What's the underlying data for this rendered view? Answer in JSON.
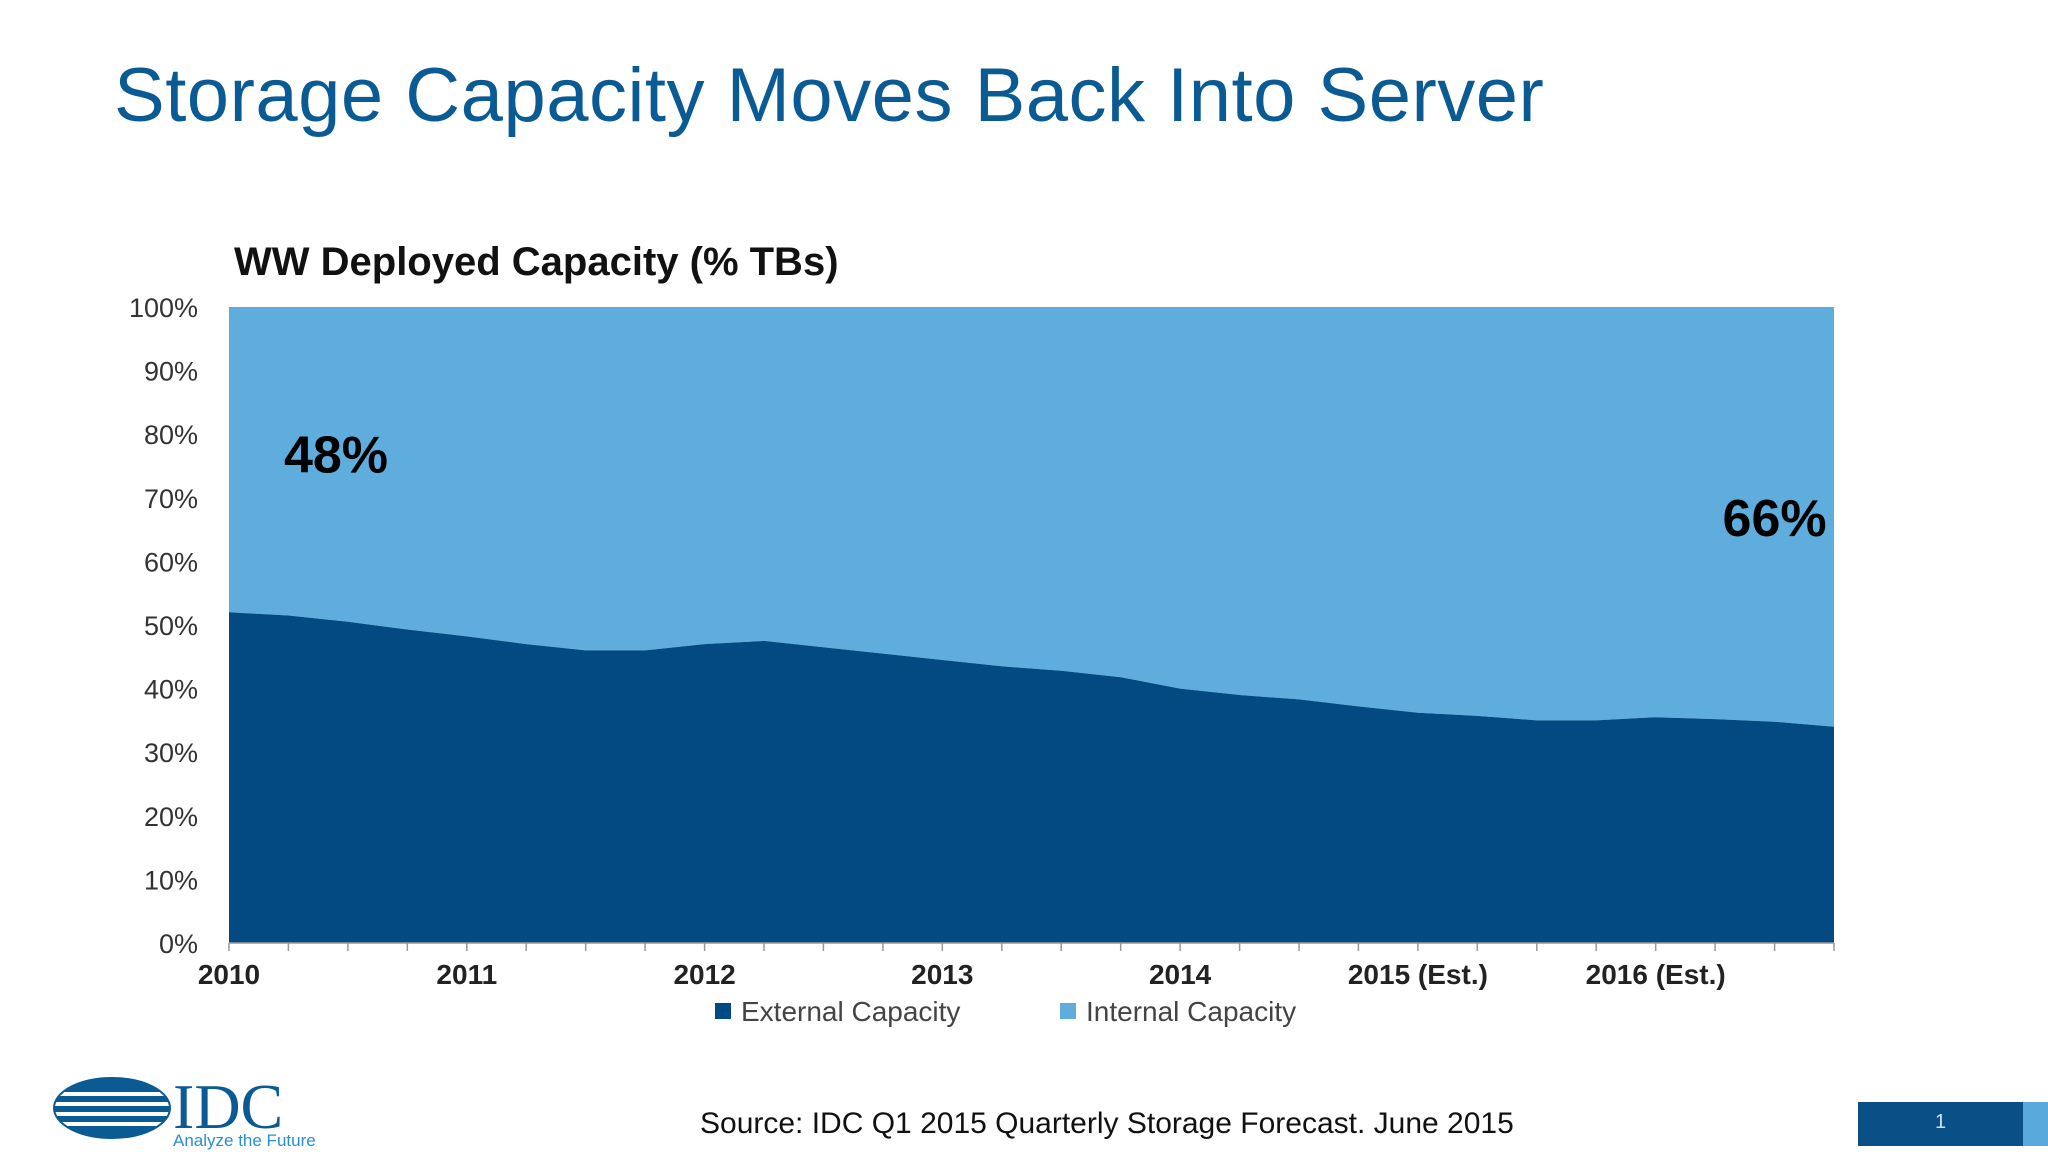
{
  "slide": {
    "title": "Storage Capacity Moves Back Into Server",
    "source": "Source: IDC Q1 2015 Quarterly  Storage Forecast. June 2015",
    "page_number": "1"
  },
  "logo": {
    "name": "IDC",
    "tagline": "Analyze the Future"
  },
  "colors": {
    "title": "#0a5a94",
    "external": "#034a82",
    "internal": "#5eaddc"
  },
  "chart_data": {
    "type": "area",
    "stacked": true,
    "percent": true,
    "title": "WW Deployed Capacity (% TBs)",
    "xlabel": "",
    "ylabel": "",
    "ylim": [
      0,
      100
    ],
    "y_ticks": [
      "0%",
      "10%",
      "20%",
      "30%",
      "40%",
      "50%",
      "60%",
      "70%",
      "80%",
      "90%",
      "100%"
    ],
    "x_ticks": [
      "2010",
      "2011",
      "2012",
      "2013",
      "2014",
      "2015 (Est.)",
      "2016 (Est.)"
    ],
    "x": [
      0,
      0.25,
      0.5,
      0.75,
      1,
      1.25,
      1.5,
      1.75,
      2,
      2.25,
      2.5,
      2.75,
      3,
      3.25,
      3.5,
      3.75,
      4,
      4.25,
      4.5,
      4.75,
      5,
      5.25,
      5.5,
      5.75,
      6,
      6.25,
      6.5,
      6.75
    ],
    "x_max": 6.75,
    "series": [
      {
        "name": "External Capacity",
        "color": "#034a82",
        "values": [
          52,
          51.5,
          50.5,
          49.3,
          48.2,
          47,
          46,
          46,
          47,
          47.5,
          46.5,
          45.5,
          44.5,
          43.5,
          42.8,
          41.8,
          40,
          39,
          38.3,
          37.2,
          36.2,
          35.7,
          35,
          35,
          35.5,
          35.2,
          34.8,
          34
        ]
      },
      {
        "name": "Internal Capacity",
        "color": "#5eaddc",
        "values": [
          48,
          48.5,
          49.5,
          50.7,
          51.8,
          53,
          54,
          54,
          53,
          52.5,
          53.5,
          54.5,
          55.5,
          56.5,
          57.2,
          58.2,
          60,
          61,
          61.7,
          62.8,
          63.8,
          64.3,
          65,
          65,
          64.5,
          64.8,
          65.2,
          66
        ]
      }
    ],
    "legend": [
      "External Capacity",
      "Internal Capacity"
    ],
    "legend_position": "bottom",
    "annotations": [
      {
        "text": "48%",
        "x": 0.45,
        "y": 74
      },
      {
        "text": "66%",
        "x": 6.5,
        "y": 64
      }
    ]
  }
}
